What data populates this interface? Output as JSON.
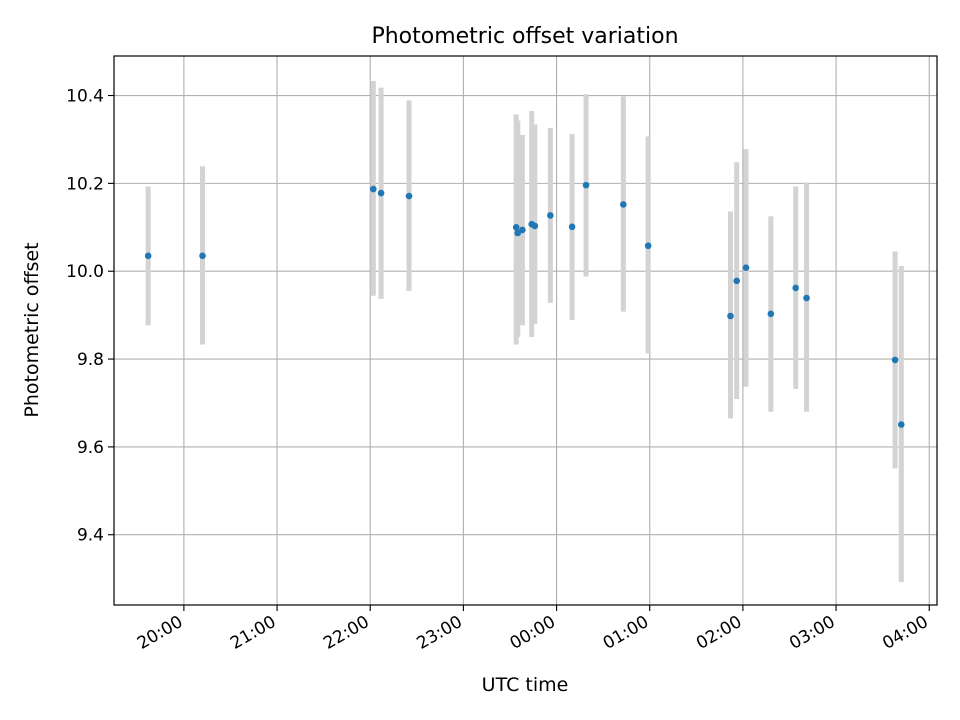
{
  "chart_data": {
    "type": "scatter",
    "title": "Photometric offset variation",
    "xlabel": "UTC time",
    "ylabel": "Photometric offset",
    "xlim": [
      "19:15",
      "04:05"
    ],
    "ylim": [
      9.24,
      10.49
    ],
    "grid": true,
    "x_ticks": [
      "20:00",
      "21:00",
      "22:00",
      "23:00",
      "00:00",
      "01:00",
      "02:00",
      "03:00",
      "04:00"
    ],
    "y_ticks": [
      "9.4",
      "9.6",
      "9.8",
      "10.0",
      "10.2",
      "10.4"
    ],
    "point_color": "#1f77b4",
    "errorbar_color": "#d3d3d3",
    "points": [
      {
        "x": "19:37",
        "y": 10.035,
        "ylo": 9.877,
        "yhi": 10.193
      },
      {
        "x": "20:12",
        "y": 10.035,
        "ylo": 9.833,
        "yhi": 10.239
      },
      {
        "x": "22:02",
        "y": 10.187,
        "ylo": 9.944,
        "yhi": 10.433
      },
      {
        "x": "22:07",
        "y": 10.178,
        "ylo": 9.937,
        "yhi": 10.418
      },
      {
        "x": "22:25",
        "y": 10.171,
        "ylo": 9.955,
        "yhi": 10.389
      },
      {
        "x": "23:34",
        "y": 10.1,
        "ylo": 9.833,
        "yhi": 10.357
      },
      {
        "x": "23:35",
        "y": 10.087,
        "ylo": 9.85,
        "yhi": 10.343
      },
      {
        "x": "23:38",
        "y": 10.094,
        "ylo": 9.877,
        "yhi": 10.31
      },
      {
        "x": "23:44",
        "y": 10.107,
        "ylo": 9.85,
        "yhi": 10.365
      },
      {
        "x": "23:46",
        "y": 10.103,
        "ylo": 9.88,
        "yhi": 10.334
      },
      {
        "x": "23:56",
        "y": 10.127,
        "ylo": 9.928,
        "yhi": 10.326
      },
      {
        "x": "00:10",
        "y": 10.101,
        "ylo": 9.889,
        "yhi": 10.312
      },
      {
        "x": "00:19",
        "y": 10.196,
        "ylo": 9.988,
        "yhi": 10.403
      },
      {
        "x": "00:43",
        "y": 10.152,
        "ylo": 9.908,
        "yhi": 10.398
      },
      {
        "x": "00:59",
        "y": 10.058,
        "ylo": 9.813,
        "yhi": 10.307
      },
      {
        "x": "01:52",
        "y": 9.898,
        "ylo": 9.665,
        "yhi": 10.136
      },
      {
        "x": "01:56",
        "y": 9.978,
        "ylo": 9.709,
        "yhi": 10.248
      },
      {
        "x": "02:02",
        "y": 10.008,
        "ylo": 9.737,
        "yhi": 10.278
      },
      {
        "x": "02:18",
        "y": 9.903,
        "ylo": 9.68,
        "yhi": 10.125
      },
      {
        "x": "02:34",
        "y": 9.962,
        "ylo": 9.732,
        "yhi": 10.193
      },
      {
        "x": "02:41",
        "y": 9.939,
        "ylo": 9.68,
        "yhi": 10.202
      },
      {
        "x": "03:38",
        "y": 9.798,
        "ylo": 9.551,
        "yhi": 10.045
      },
      {
        "x": "03:42",
        "y": 9.651,
        "ylo": 9.292,
        "yhi": 10.012
      }
    ]
  }
}
